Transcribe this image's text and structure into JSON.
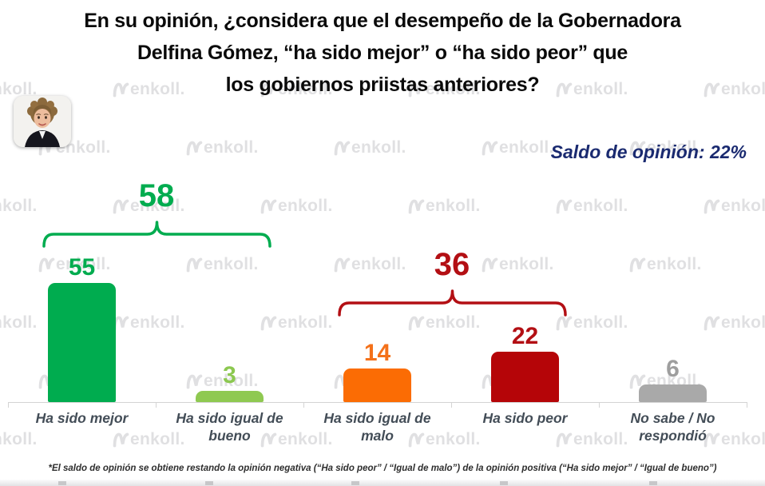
{
  "title": {
    "lines": [
      "En su opinión, ¿considera que el desempeño de la Gobernadora",
      "Delfina Gómez, “ha sido mejor” o “ha sido peor” que",
      "los gobiernos priistas anteriores?"
    ]
  },
  "header": {
    "saldo_label": "Saldo de opinión: 22%"
  },
  "brand": {
    "watermark_text": "enkoll."
  },
  "footnote": "*El saldo de opinión se obtiene restando la opinión negativa (“Ha sido peor” / “Igual de malo”) de la opinión positiva (“Ha sido mejor” / “Igual de bueno”)",
  "chart_data": {
    "type": "bar",
    "title": "En su opinión, ¿considera que el desempeño de la Gobernadora Delfina Gómez, “ha sido mejor” o “ha sido peor” que los gobiernos priistas anteriores?",
    "categories": [
      "Ha sido mejor",
      "Ha sido igual de bueno",
      "Ha sido igual de malo",
      "Ha sido peor",
      "No sabe / No respondió"
    ],
    "values": [
      55,
      3,
      14,
      22,
      6
    ],
    "bar_colors": [
      "#00ac4f",
      "#8fc951",
      "#fb6c04",
      "#b50508",
      "#a9a9a9"
    ],
    "value_label_colors": [
      "#00ac4f",
      "#8cc850",
      "#f4711a",
      "#b30f14",
      "#9e9e9e"
    ],
    "groups": [
      {
        "label": "58",
        "value": 58,
        "members": [
          0,
          1
        ],
        "color": "#00ac4f"
      },
      {
        "label": "36",
        "value": 36,
        "members": [
          2,
          3
        ],
        "color": "#b30f14"
      }
    ],
    "annotations": [
      "Saldo de opinión: 22%"
    ],
    "xlabel": "",
    "ylabel": "",
    "ylim": [
      0,
      60
    ],
    "grid": false,
    "legend": false,
    "value_labels": true
  }
}
